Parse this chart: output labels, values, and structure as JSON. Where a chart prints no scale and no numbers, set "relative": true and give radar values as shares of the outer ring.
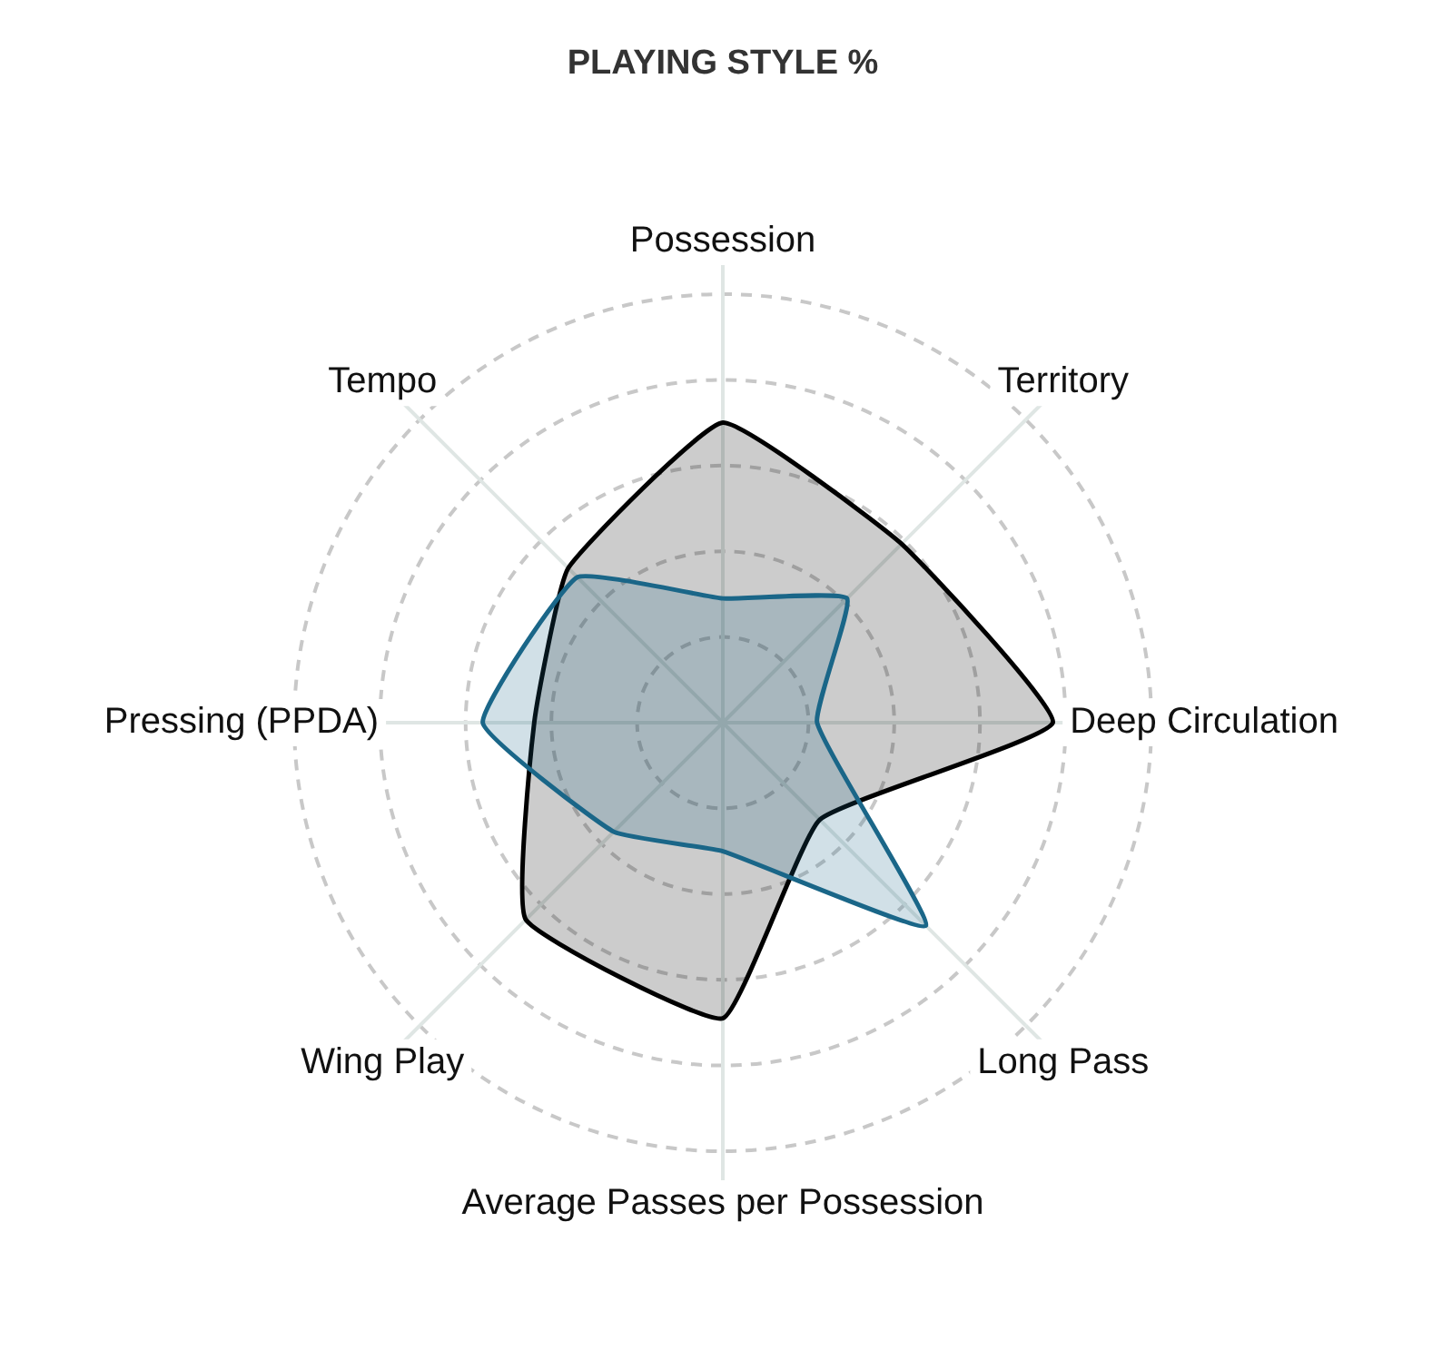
{
  "chart_data": {
    "type": "radar",
    "title": "PLAYING STYLE %",
    "categories": [
      "Possession",
      "Territory",
      "Deep Circulation",
      "Long Pass",
      "Average Passes per Possession",
      "Wing Play",
      "Pressing (PPDA)",
      "Tempo"
    ],
    "relative": true,
    "grid": true,
    "legend": false,
    "marker": "none",
    "series": [
      {
        "color": "#1a6688",
        "values": [
          0.29,
          0.41,
          0.22,
          0.67,
          0.3,
          0.36,
          0.56,
          0.48
        ]
      },
      {
        "color": "#000000",
        "values": [
          0.7,
          0.59,
          0.77,
          0.32,
          0.69,
          0.65,
          0.44,
          0.51
        ]
      }
    ]
  }
}
